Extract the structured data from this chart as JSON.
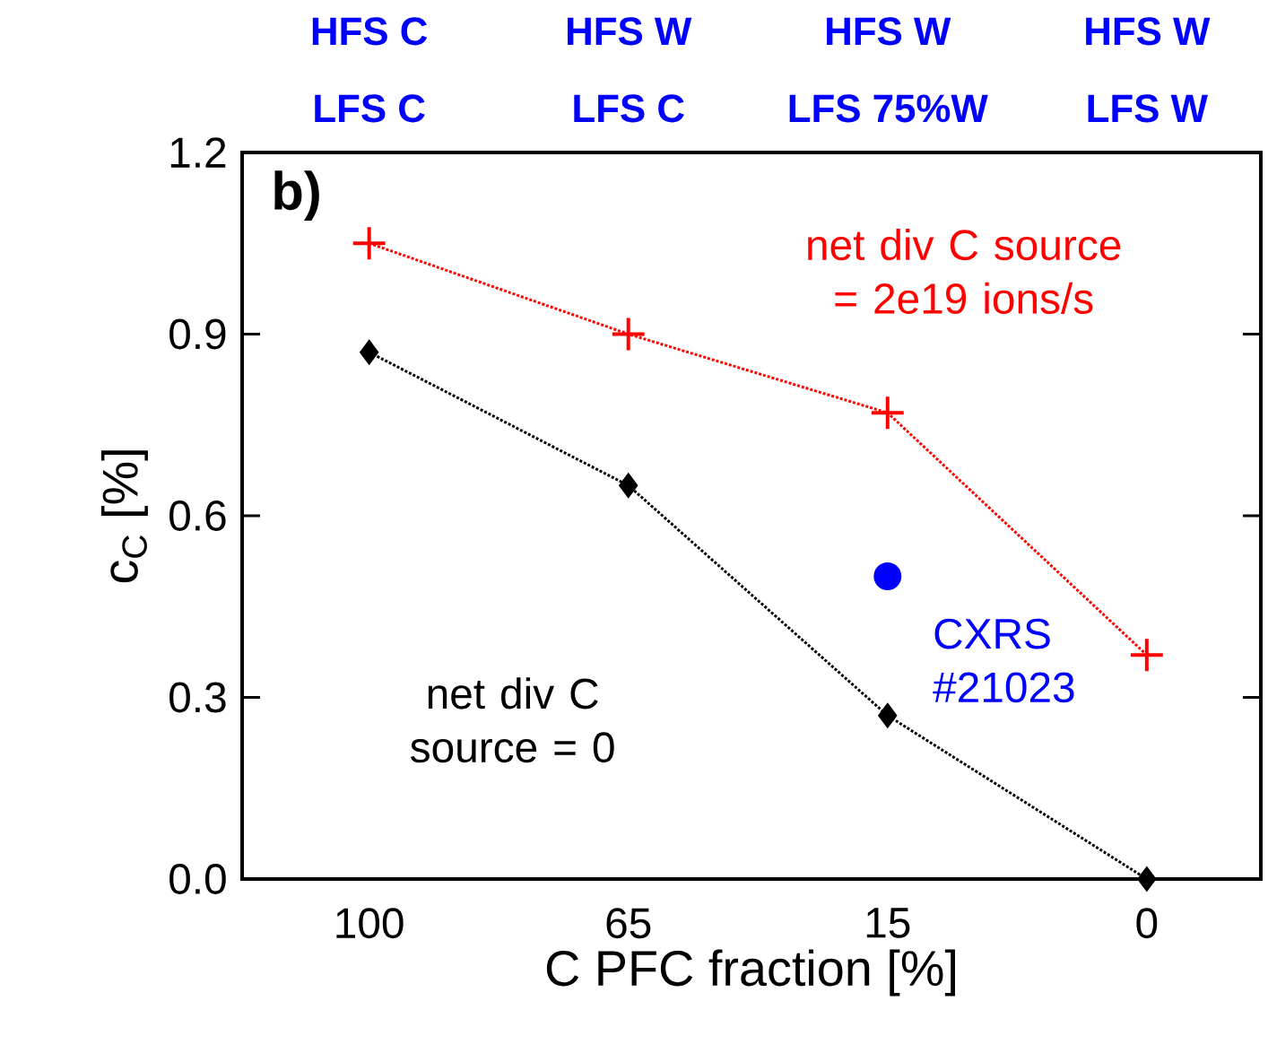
{
  "chart_data": {
    "type": "line",
    "xlabel": "C PFC fraction [%]",
    "ylabel": "c$_{C}$ [%]",
    "categories": [
      "100",
      "65",
      "15",
      "0"
    ],
    "ylim": [
      0,
      1.2
    ],
    "yticks": [
      {
        "value": 0,
        "label": "0.0"
      },
      {
        "value": 0.3,
        "label": "0.3"
      },
      {
        "value": 0.6,
        "label": "0.6"
      },
      {
        "value": 0.9,
        "label": "0.9"
      },
      {
        "value": 1.2,
        "label": "1.2"
      }
    ],
    "series": [
      {
        "name": "net div C source = 2e19 ions/s",
        "color": "#ff0000",
        "marker": "cross",
        "line_style": "dotted",
        "values": [
          1.05,
          0.9,
          0.77,
          0.37
        ]
      },
      {
        "name": "net div C source = 0",
        "color": "#000000",
        "marker": "diamond",
        "line_style": "dotted",
        "values": [
          0.87,
          0.65,
          0.27,
          0.0
        ]
      },
      {
        "name": "CXRS #21023",
        "type": "scatter",
        "color": "#0000ff",
        "marker": "circle",
        "values": [
          null,
          null,
          0.5,
          null
        ]
      }
    ],
    "annotations": [
      "b)",
      "HFS C",
      "LFS C",
      "HFS W",
      "LFS C",
      "HFS W",
      "LFS 75%W",
      "HFS W",
      "LFS W"
    ],
    "grid": false
  }
}
